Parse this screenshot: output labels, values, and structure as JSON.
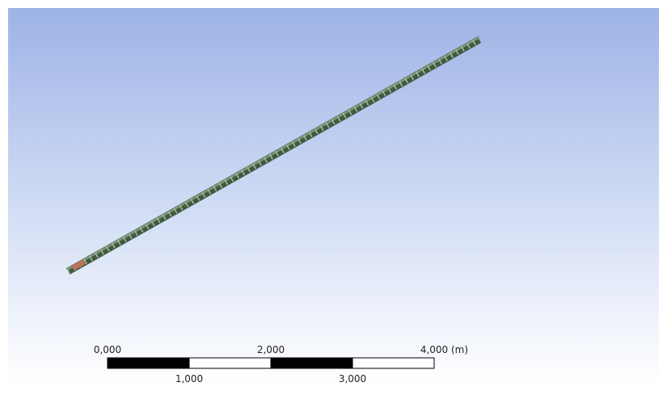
{
  "scale_bar": {
    "top_labels": [
      "0,000",
      "2,000",
      "4,000"
    ],
    "bottom_labels": [
      "1,000",
      "3,000"
    ],
    "unit": "(m)"
  }
}
